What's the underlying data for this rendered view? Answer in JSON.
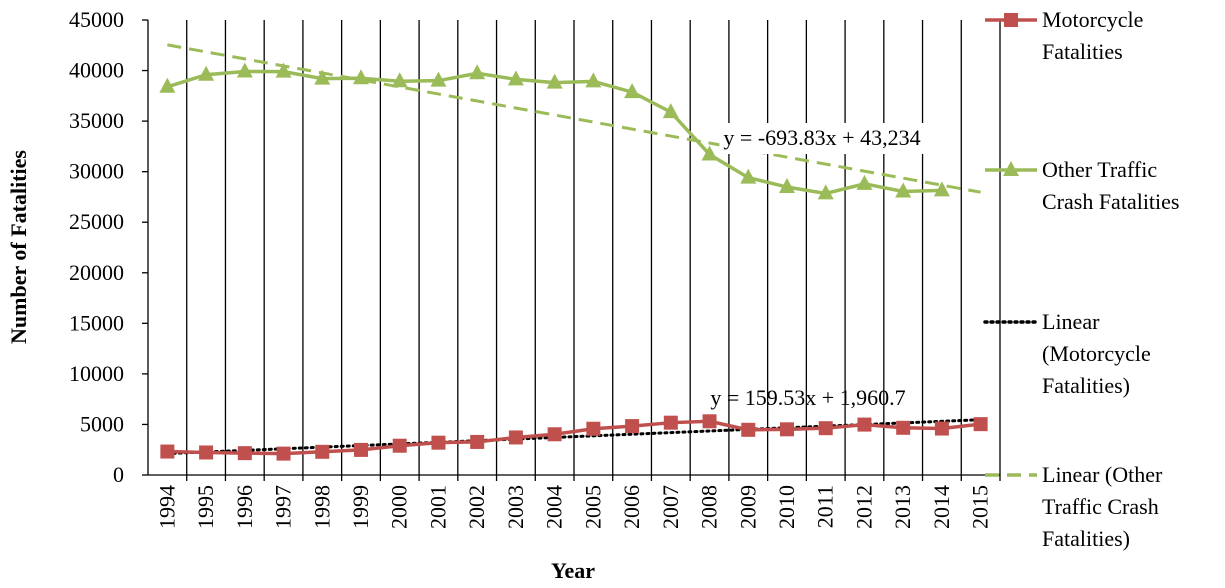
{
  "chart_data": {
    "type": "line",
    "x_label": "Year",
    "y_label": "Number of Fatalities",
    "categories": [
      "1994",
      "1995",
      "1996",
      "1997",
      "1998",
      "1999",
      "2000",
      "2001",
      "2002",
      "2003",
      "2004",
      "2005",
      "2006",
      "2007",
      "2008",
      "2009",
      "2010",
      "2011",
      "2012",
      "2013",
      "2014",
      "2015"
    ],
    "series": [
      {
        "name": "Motorcycle Fatalities",
        "color": "#c0504d",
        "marker": "square",
        "values": [
          2320,
          2227,
          2161,
          2116,
          2294,
          2483,
          2897,
          3197,
          3270,
          3714,
          4028,
          4576,
          4837,
          5174,
          5312,
          4469,
          4518,
          4630,
          4986,
          4668,
          4594,
          5029
        ]
      },
      {
        "name": "Other Traffic Crash Fatalities",
        "color": "#9bbb59",
        "marker": "triangle",
        "values": [
          38396,
          39590,
          39904,
          39897,
          39207,
          39234,
          38948,
          38999,
          39735,
          39131,
          38808,
          38934,
          37871,
          35889,
          31700,
          29414,
          28481,
          27849,
          28796,
          28042,
          28150,
          null
        ]
      }
    ],
    "trendlines": [
      {
        "name": "Linear (Motorcycle Fatalities)",
        "color": "#000000",
        "dash": "dotted",
        "slope": 159.53,
        "intercept": 1960.7,
        "label": "y = 159.53x + 1,960.7"
      },
      {
        "name": "Linear (Other Traffic Crash Fatalities)",
        "color": "#9bbb59",
        "dash": "dashed",
        "slope": -693.83,
        "intercept": 43234,
        "label": "y = -693.83x + 43,234"
      }
    ],
    "ylim": [
      0,
      45000
    ],
    "yticks": [
      0,
      5000,
      10000,
      15000,
      20000,
      25000,
      30000,
      35000,
      40000,
      45000
    ],
    "grid": "vertical",
    "legend": "right"
  }
}
